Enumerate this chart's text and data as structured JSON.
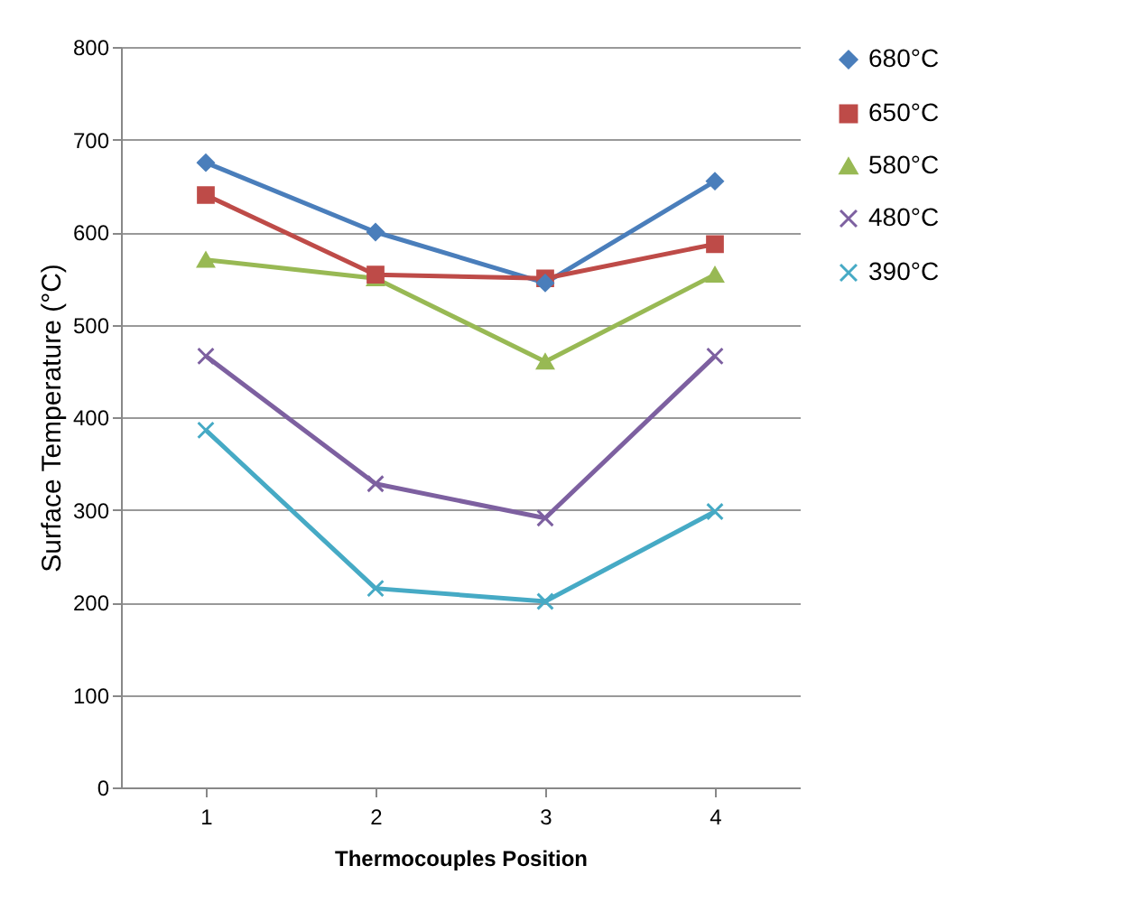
{
  "chart_data": {
    "type": "line",
    "xlabel": "Thermocouples Position",
    "ylabel": "Surface Temperature (°C)",
    "categories": [
      "1",
      "2",
      "3",
      "4"
    ],
    "ylim": [
      0,
      800
    ],
    "yticks": [
      0,
      100,
      200,
      300,
      400,
      500,
      600,
      700,
      800
    ],
    "grid": "y",
    "legend": "right",
    "series": [
      {
        "name": "680°C",
        "color": "#4a7ebb",
        "marker": "diamond",
        "values": [
          675,
          600,
          545,
          655
        ]
      },
      {
        "name": "650°C",
        "color": "#be4b48",
        "marker": "square",
        "values": [
          640,
          554,
          550,
          587
        ]
      },
      {
        "name": "580°C",
        "color": "#98b954",
        "marker": "triangle",
        "values": [
          570,
          550,
          460,
          554
        ]
      },
      {
        "name": "480°C",
        "color": "#7d60a0",
        "marker": "cross",
        "values": [
          466,
          328,
          291,
          466
        ]
      },
      {
        "name": "390°C",
        "color": "#46aac5",
        "marker": "cross",
        "values": [
          386,
          215,
          201,
          298
        ]
      }
    ]
  }
}
